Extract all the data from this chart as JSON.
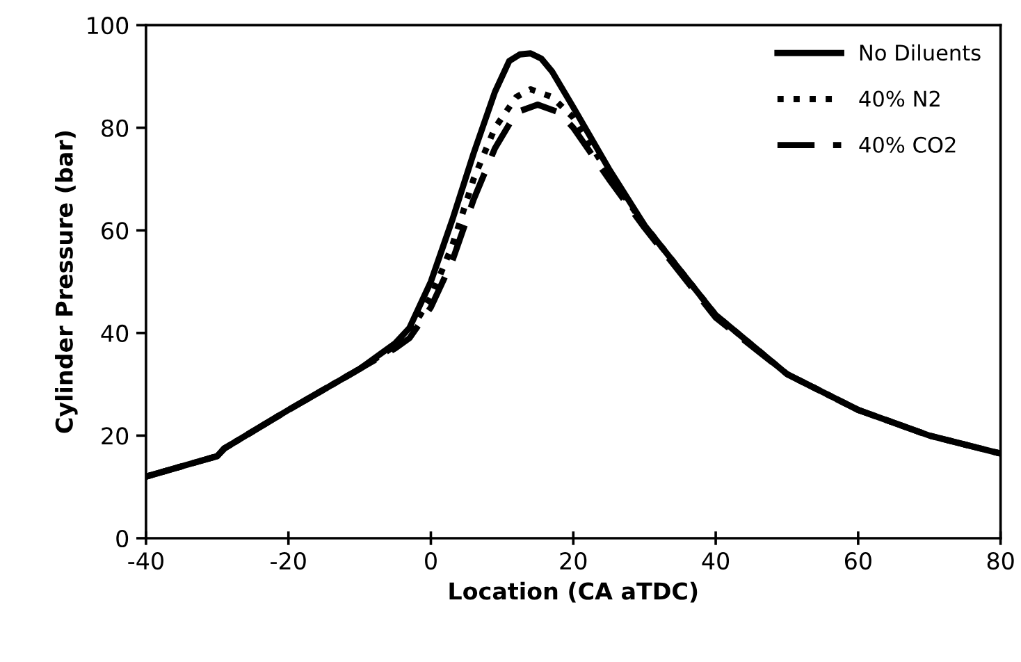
{
  "chart_data": {
    "type": "line",
    "xlabel": "Location (CA aTDC)",
    "ylabel": "Cylinder Pressure (bar)",
    "xlim": [
      -40,
      80
    ],
    "xticks": [
      -40,
      -20,
      0,
      20,
      40,
      60,
      80
    ],
    "ylim": [
      0,
      100
    ],
    "yticks": [
      0,
      20,
      40,
      60,
      80,
      100
    ],
    "grid": false,
    "legend": "top right",
    "series": [
      {
        "name": "No Diluents",
        "color": "#000000",
        "line_style": "solid",
        "x": [
          -40,
          -30,
          -29,
          -20,
          -10,
          -5,
          -3,
          0,
          3,
          6,
          9,
          11,
          12.5,
          14,
          15.5,
          17,
          20,
          25,
          30,
          40,
          50,
          60,
          70,
          80
        ],
        "values": [
          12,
          16,
          17.5,
          25,
          33,
          38,
          41,
          50,
          62,
          75,
          87,
          93,
          94.3,
          94.5,
          93.5,
          91,
          84,
          72,
          61,
          43.5,
          32,
          25,
          20,
          16.5
        ]
      },
      {
        "name": "40% N2",
        "color": "#000000",
        "line_style": "dotted",
        "x": [
          -40,
          -30,
          -29,
          -20,
          -10,
          -5,
          -3,
          0,
          3,
          6,
          9,
          12,
          14,
          17,
          20,
          25,
          30,
          40,
          50,
          60,
          70,
          80
        ],
        "values": [
          12,
          16,
          17.5,
          25,
          33,
          37.5,
          40,
          47,
          57,
          70,
          80,
          86,
          87.5,
          86,
          82,
          71,
          61,
          43.5,
          32,
          25,
          20,
          16.5
        ]
      },
      {
        "name": "40% CO2",
        "color": "#000000",
        "line_style": "dashed",
        "x": [
          -40,
          -30,
          -29,
          -20,
          -10,
          -5,
          -3,
          0,
          3,
          6,
          9,
          12,
          15,
          18,
          20,
          25,
          30,
          40,
          50,
          60,
          70,
          80
        ],
        "values": [
          12,
          16,
          17.5,
          25,
          33,
          37,
          39,
          45,
          54,
          66,
          76,
          83,
          84.5,
          83,
          80,
          70,
          60.5,
          43,
          32,
          25,
          20,
          16.5
        ]
      }
    ]
  }
}
